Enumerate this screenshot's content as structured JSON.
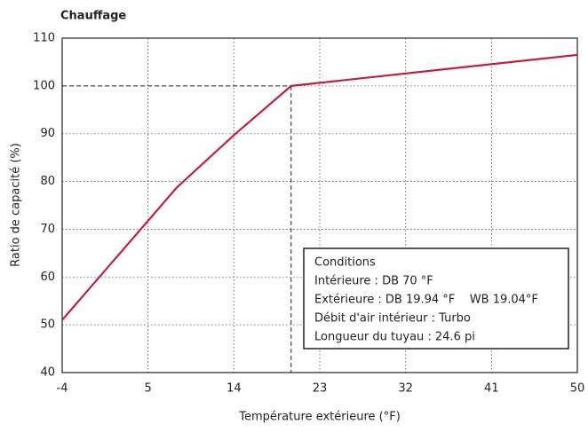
{
  "chart_data": {
    "type": "line",
    "title": "Chauffage",
    "x_label": "Température extérieure (°F)",
    "y_label": "Ratio de capacité (%)",
    "x": [
      -4,
      8,
      14,
      20,
      50
    ],
    "series": [
      {
        "name": "Ratio de capacité",
        "color": "#c0203f",
        "values": [
          51,
          78.7,
          89.7,
          100,
          106.5
        ]
      }
    ],
    "xlim": [
      -4,
      50
    ],
    "xticks": [
      -4,
      5,
      14,
      23,
      32,
      41,
      50
    ],
    "ylim": [
      40,
      110
    ],
    "yticks": [
      40,
      50,
      60,
      70,
      80,
      90,
      100,
      110
    ],
    "grid": true,
    "reference": {
      "x": 20,
      "y": 100
    },
    "annotation": [
      "Conditions",
      "Intérieure : DB 70 °F",
      "Extérieure : DB 19.94 °F    WB 19.04°F",
      "Débit d'air intérieur : Turbo",
      "Longueur du tuyau : 24.6 pi"
    ]
  }
}
